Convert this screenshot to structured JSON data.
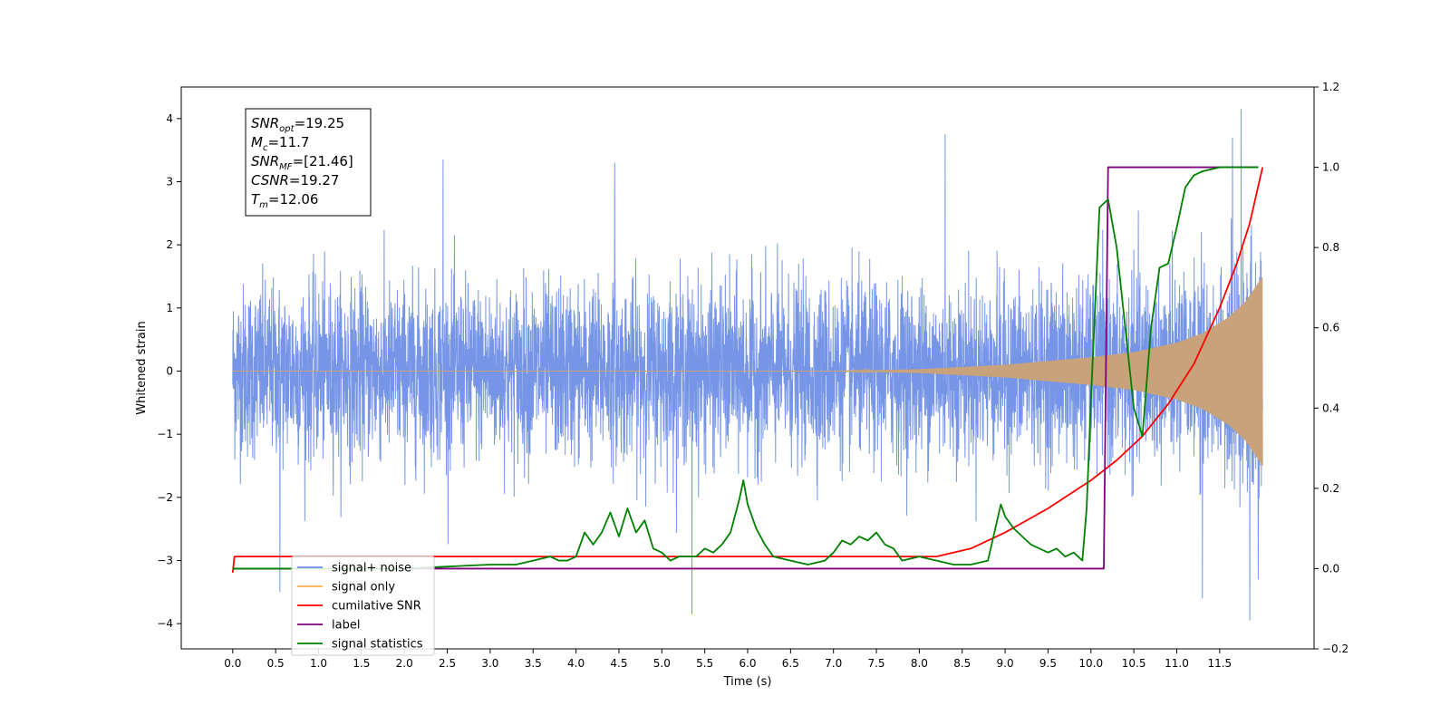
{
  "chart_data": {
    "type": "line",
    "xlabel": "Time (s)",
    "ylabel": "Whitened strain",
    "xlim": [
      -0.6,
      12.6
    ],
    "ylim": [
      -4.4,
      4.5
    ],
    "y2lim": [
      -0.2,
      1.2
    ],
    "x_ticks": [
      0.0,
      0.5,
      1.0,
      1.5,
      2.0,
      2.5,
      3.0,
      3.5,
      4.0,
      4.5,
      5.0,
      5.5,
      6.0,
      6.5,
      7.0,
      7.5,
      8.0,
      8.5,
      9.0,
      9.5,
      10.0,
      10.5,
      11.0,
      11.5
    ],
    "x_tick_labels": [
      "0.0",
      "0.5",
      "1.0",
      "1.5",
      "2.0",
      "2.5",
      "3.0",
      "3.5",
      "4.0",
      "4.5",
      "5.0",
      "5.5",
      "6.0",
      "6.5",
      "7.0",
      "7.5",
      "8.0",
      "8.5",
      "9.0",
      "9.5",
      "10.0",
      "10.5",
      "11.0",
      "11.5"
    ],
    "y_ticks": [
      -4,
      -3,
      -2,
      -1,
      0,
      1,
      2,
      3,
      4
    ],
    "y_tick_labels": [
      "−4",
      "−3",
      "−2",
      "−1",
      "0",
      "1",
      "2",
      "3",
      "4"
    ],
    "y2_ticks": [
      -0.2,
      0.0,
      0.2,
      0.4,
      0.6,
      0.8,
      1.0,
      1.2
    ],
    "y2_tick_labels": [
      "−0.2",
      "0.0",
      "0.2",
      "0.4",
      "0.6",
      "0.8",
      "1.0",
      "1.2"
    ],
    "grid": false,
    "legend_position": "lower-left",
    "legend": [
      {
        "label": "signal+ noise",
        "color": "#6f8fe6"
      },
      {
        "label": "signal only",
        "color": "#ffb04d"
      },
      {
        "label": "cumilative SNR",
        "color": "#ff0000"
      },
      {
        "label": "label",
        "color": "#800080"
      },
      {
        "label": "signal statistics",
        "color": "#008000"
      }
    ],
    "annotation": {
      "lines": [
        {
          "name": "SNR",
          "sub": "opt",
          "value": "=19.25"
        },
        {
          "name": "M",
          "sub": "c",
          "value": "=11.7"
        },
        {
          "name": "SNR",
          "sub": "MF",
          "value": "=[21.46]"
        },
        {
          "name": "CSNR",
          "sub": "",
          "value": "=19.27"
        },
        {
          "name": "T",
          "sub": "m",
          "value": "=12.06"
        }
      ]
    },
    "series": [
      {
        "name": "signal+ noise",
        "axis": "left",
        "color": "#6f8fe6",
        "x_range": [
          0.0,
          12.0
        ],
        "typical_envelope": [
          -1.5,
          1.5
        ],
        "extremes": [
          {
            "x": 0.55,
            "y": -3.5
          },
          {
            "x": 2.45,
            "y": 3.35
          },
          {
            "x": 4.45,
            "y": 3.3
          },
          {
            "x": 5.35,
            "y": -3.85
          },
          {
            "x": 8.3,
            "y": 3.75
          },
          {
            "x": 11.65,
            "y": 3.7
          },
          {
            "x": 11.75,
            "y": 4.15
          },
          {
            "x": 11.85,
            "y": -3.95
          },
          {
            "x": 11.3,
            "y": -3.6
          },
          {
            "x": 11.95,
            "y": -3.3
          }
        ]
      },
      {
        "name": "signal only",
        "axis": "left",
        "color": "#c8a27a",
        "x": [
          0.0,
          7.0,
          8.0,
          9.0,
          10.0,
          10.5,
          11.0,
          11.3,
          11.6,
          11.8,
          12.0
        ],
        "amplitude": [
          0.0,
          0.0,
          0.03,
          0.1,
          0.22,
          0.3,
          0.45,
          0.6,
          0.85,
          1.1,
          1.5
        ]
      },
      {
        "name": "cumilative SNR",
        "axis": "right",
        "color": "#ff0000",
        "x": [
          0.0,
          0.02,
          8.2,
          8.6,
          9.0,
          9.5,
          10.0,
          10.3,
          10.6,
          10.9,
          11.2,
          11.5,
          11.7,
          11.85,
          12.0
        ],
        "y": [
          -0.01,
          0.03,
          0.03,
          0.05,
          0.09,
          0.15,
          0.22,
          0.27,
          0.33,
          0.41,
          0.51,
          0.65,
          0.76,
          0.86,
          1.0
        ]
      },
      {
        "name": "label",
        "axis": "right",
        "color": "#800080",
        "x": [
          0.0,
          10.15,
          10.2,
          11.95
        ],
        "y": [
          0.0,
          0.0,
          1.0,
          1.0
        ]
      },
      {
        "name": "signal statistics",
        "axis": "right",
        "color": "#008000",
        "x": [
          0.0,
          2.0,
          2.5,
          3.0,
          3.3,
          3.5,
          3.7,
          3.8,
          3.9,
          4.0,
          4.1,
          4.2,
          4.3,
          4.4,
          4.5,
          4.6,
          4.7,
          4.8,
          4.9,
          5.0,
          5.1,
          5.2,
          5.4,
          5.5,
          5.6,
          5.7,
          5.8,
          5.9,
          5.95,
          6.0,
          6.1,
          6.2,
          6.3,
          6.5,
          6.7,
          6.9,
          7.0,
          7.1,
          7.2,
          7.3,
          7.4,
          7.5,
          7.6,
          7.7,
          7.8,
          8.0,
          8.2,
          8.4,
          8.6,
          8.8,
          8.95,
          9.0,
          9.1,
          9.2,
          9.3,
          9.4,
          9.5,
          9.6,
          9.7,
          9.8,
          9.9,
          9.95,
          10.0,
          10.1,
          10.2,
          10.3,
          10.4,
          10.5,
          10.6,
          10.7,
          10.8,
          10.9,
          11.0,
          11.1,
          11.2,
          11.3,
          11.5,
          11.95
        ],
        "y": [
          0.0,
          0.0,
          0.005,
          0.01,
          0.01,
          0.02,
          0.03,
          0.02,
          0.02,
          0.03,
          0.09,
          0.06,
          0.09,
          0.14,
          0.08,
          0.15,
          0.09,
          0.12,
          0.05,
          0.04,
          0.02,
          0.03,
          0.03,
          0.05,
          0.04,
          0.06,
          0.09,
          0.17,
          0.22,
          0.16,
          0.1,
          0.06,
          0.03,
          0.02,
          0.01,
          0.02,
          0.04,
          0.07,
          0.06,
          0.08,
          0.07,
          0.09,
          0.06,
          0.05,
          0.02,
          0.03,
          0.02,
          0.01,
          0.01,
          0.02,
          0.16,
          0.13,
          0.1,
          0.08,
          0.06,
          0.05,
          0.04,
          0.05,
          0.03,
          0.04,
          0.02,
          0.15,
          0.42,
          0.9,
          0.92,
          0.8,
          0.6,
          0.4,
          0.33,
          0.6,
          0.75,
          0.76,
          0.85,
          0.95,
          0.98,
          0.99,
          1.0,
          1.0
        ]
      }
    ]
  }
}
